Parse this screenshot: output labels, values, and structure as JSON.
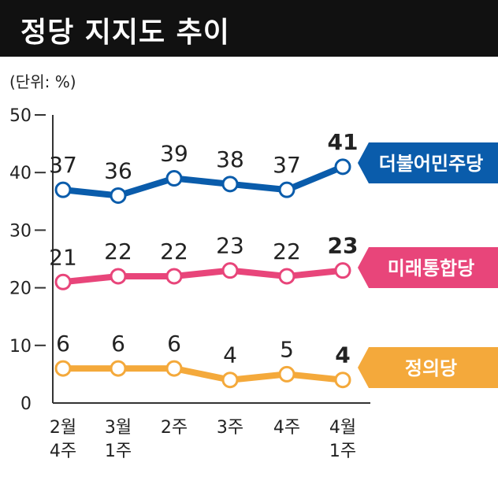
{
  "title": "정당 지지도 추이",
  "unit": "(단위: %)",
  "chart_data": {
    "type": "line",
    "title": "정당 지지도 추이",
    "ylabel": "(단위: %)",
    "xlabel": "",
    "ylim": [
      0,
      50
    ],
    "y_ticks": [
      "0",
      "10",
      "20",
      "30",
      "40",
      "50"
    ],
    "categories": [
      [
        "2월",
        "4주"
      ],
      [
        "3월",
        "1주"
      ],
      [
        "2주"
      ],
      [
        "3주"
      ],
      [
        "4주"
      ],
      [
        "4월",
        "1주"
      ]
    ],
    "grid": false,
    "series": [
      {
        "name": "더불어민주당",
        "color": "#0a5cab",
        "values": [
          37,
          36,
          39,
          38,
          37,
          41
        ]
      },
      {
        "name": "미래통합당",
        "color": "#e8457a",
        "values": [
          21,
          22,
          22,
          23,
          22,
          23
        ]
      },
      {
        "name": "정의당",
        "color": "#f4a93b",
        "values": [
          6,
          6,
          6,
          4,
          5,
          4
        ]
      }
    ]
  }
}
